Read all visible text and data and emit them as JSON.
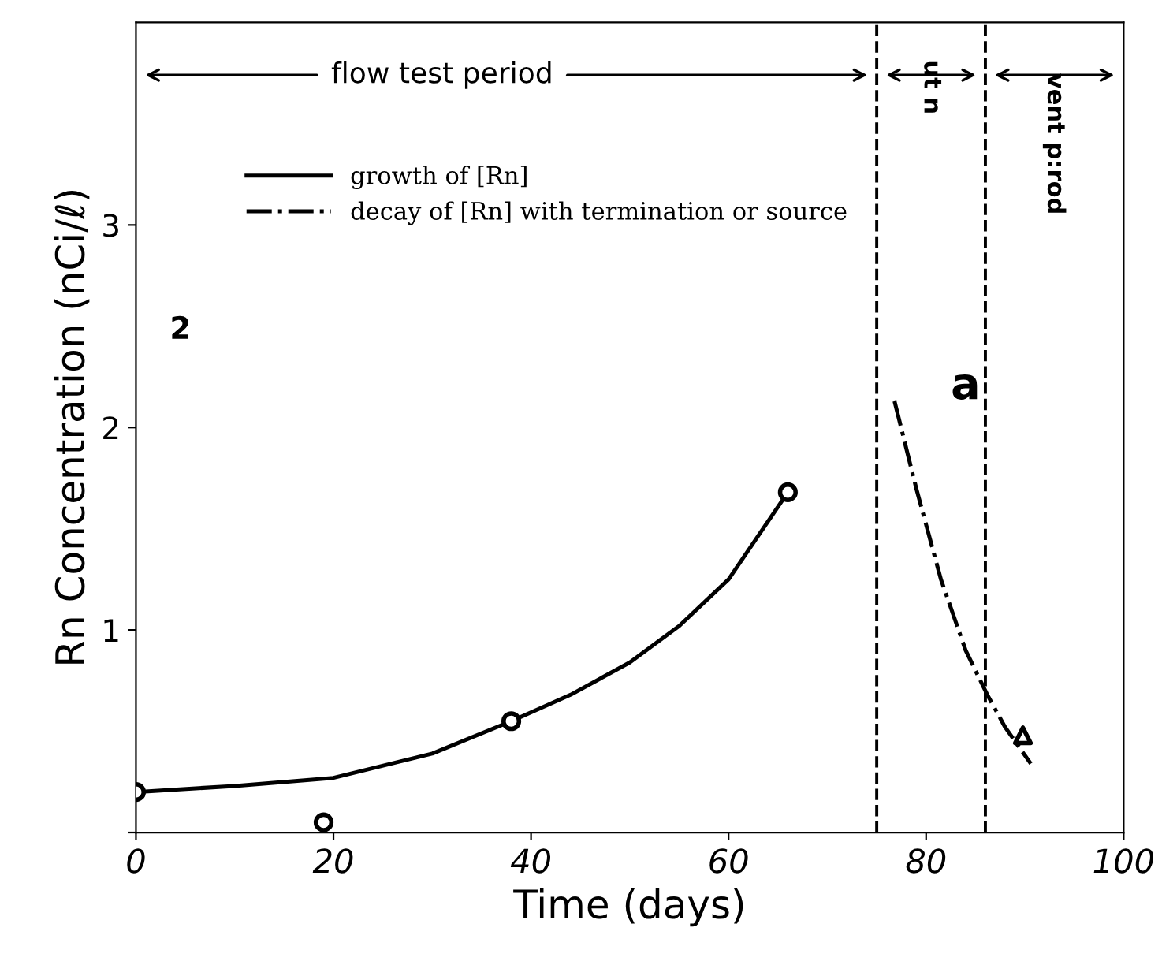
{
  "chart_data": {
    "type": "line",
    "xlabel": "Time (days)",
    "ylabel": "Rn Concentration (nCi/ℓ)",
    "xlim": [
      0,
      100
    ],
    "ylim": [
      0,
      4
    ],
    "xticks": [
      0,
      20,
      40,
      60,
      80,
      100
    ],
    "yticks": [
      {
        "value": 0,
        "label": null
      },
      1,
      2,
      3
    ],
    "grid": false,
    "legend": "top left",
    "series": [
      {
        "name": "growth of [Rn]",
        "color": "#000000",
        "line_style": "solid",
        "marker": "none",
        "x": [
          0,
          10,
          20,
          30,
          38,
          44,
          50,
          55,
          60,
          66
        ],
        "values": [
          0.2,
          0.23,
          0.27,
          0.39,
          0.55,
          0.68,
          0.84,
          1.02,
          1.25,
          1.68
        ]
      },
      {
        "name": "decay of [Rn] with termination or source",
        "color": "#000000",
        "line_style": "dashdot",
        "marker": "none",
        "x": [
          76.8,
          79,
          81.5,
          84,
          86.2,
          88,
          90.6
        ],
        "values": [
          2.13,
          1.7,
          1.25,
          0.9,
          0.68,
          0.52,
          0.34
        ]
      },
      {
        "type": "scatter",
        "color": "#000000",
        "marker": "circle",
        "x": [
          0,
          19,
          38,
          66
        ],
        "values": [
          0.2,
          0.05,
          0.55,
          1.68
        ]
      },
      {
        "type": "scatter",
        "color": "#000000",
        "marker": "triangle",
        "x": [
          89.8
        ],
        "values": [
          0.48
        ]
      }
    ],
    "ref_lines": [
      {
        "axis": "x",
        "value": 75,
        "line_style": "dashed",
        "color": "#000000"
      },
      {
        "axis": "x",
        "value": 86,
        "line_style": "dashed",
        "color": "#000000"
      }
    ],
    "annotations": [
      "flow test period",
      "ut n",
      "vent p:rod",
      "a",
      "2"
    ]
  }
}
